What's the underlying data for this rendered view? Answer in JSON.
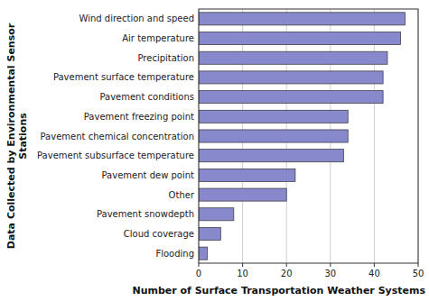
{
  "chart_data": {
    "type": "bar",
    "orientation": "horizontal",
    "categories": [
      "Flooding",
      "Cloud coverage",
      "Pavement snowdepth",
      "Other",
      "Pavement dew point",
      "Pavement subsurface temperature",
      "Pavement chemical concentration",
      "Pavement freezing point",
      "Pavement conditions",
      "Pavement surface temperature",
      "Precipitation",
      "Air temperature",
      "Wind direction and speed"
    ],
    "values": [
      2,
      5,
      8,
      20,
      22,
      33,
      34,
      34,
      42,
      42,
      43,
      46,
      47
    ],
    "color": "#8888CC",
    "x_label": "Number of Surface Transportation Weather Systems",
    "y_label": "Data Collected by Environmental Sensor\nStations",
    "xlim": [
      0,
      50
    ],
    "xticks": [
      0,
      10,
      20,
      30,
      40,
      50
    ],
    "grid": true
  }
}
